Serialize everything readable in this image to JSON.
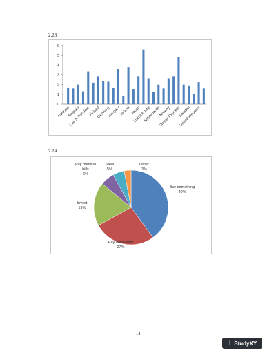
{
  "labels": {
    "first": "2.23",
    "second": "2.24"
  },
  "page_number": "14",
  "watermark": {
    "text": "StudyXY"
  },
  "chart_data": [
    {
      "type": "bar",
      "categories": [
        "Australia",
        "",
        "Belgium",
        "",
        "Czech Republic",
        "",
        "Finland",
        "",
        "Germany",
        "",
        "Hungary",
        "",
        "Ireland",
        "",
        "Japan",
        "",
        "Luxembourg",
        "",
        "Netherlands",
        "",
        "Norway",
        "",
        "Slovak Republic",
        "",
        "Sweden",
        "",
        "United Kingdom",
        ""
      ],
      "values": [
        1.7,
        1.6,
        2.0,
        1.3,
        3.35,
        2.2,
        2.8,
        2.35,
        2.3,
        1.65,
        3.6,
        0.8,
        3.8,
        1.55,
        2.8,
        5.6,
        2.65,
        1.2,
        2.0,
        1.6,
        2.65,
        2.8,
        4.85,
        2.0,
        1.85,
        1.0,
        2.25,
        1.6
      ],
      "ylim": [
        0,
        6
      ],
      "yticks": [
        "0",
        "1",
        "2",
        "3",
        "4",
        "5",
        "6"
      ],
      "color": "#4f81bd"
    },
    {
      "type": "pie",
      "slices": [
        {
          "label": "Buy something",
          "value": 40,
          "pct": "40%",
          "color": "#4f81bd"
        },
        {
          "label": "Pay down debt",
          "value": 27,
          "pct": "27%",
          "color": "#c0504d"
        },
        {
          "label": "Invest",
          "value": 19,
          "pct": "19%",
          "color": "#9bbb59"
        },
        {
          "label": "Pay medical bills",
          "value": 6,
          "pct": "6%",
          "color": "#8064a2"
        },
        {
          "label": "Save",
          "value": 5,
          "pct": "5%",
          "color": "#4bacc6"
        },
        {
          "label": "Other",
          "value": 3,
          "pct": "3%",
          "color": "#f79646"
        }
      ]
    }
  ]
}
